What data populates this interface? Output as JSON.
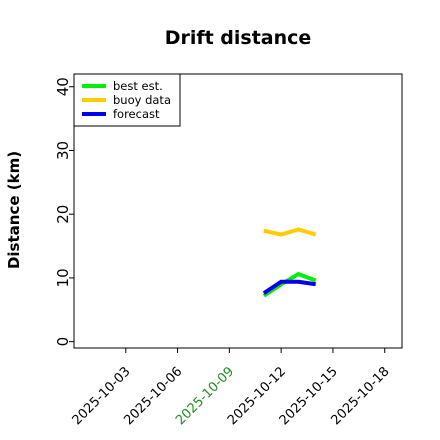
{
  "chart_data": {
    "type": "line",
    "title": "Drift distance",
    "xlabel": "",
    "ylabel": "Distance (km)",
    "ylim": [
      -1,
      42
    ],
    "xlim": [
      "2025-09-30",
      "2025-10-19"
    ],
    "yticks": [
      "0",
      "10",
      "20",
      "30",
      "40"
    ],
    "xticks": [
      {
        "label": "2025-10-03",
        "color": "#000000"
      },
      {
        "label": "2025-10-06",
        "color": "#000000"
      },
      {
        "label": "2025-10-09",
        "color": "#228b22"
      },
      {
        "label": "2025-10-12",
        "color": "#000000"
      },
      {
        "label": "2025-10-15",
        "color": "#000000"
      },
      {
        "label": "2025-10-18",
        "color": "#000000"
      }
    ],
    "legend_position": "top-left",
    "grid": false,
    "series": [
      {
        "name": "best est.",
        "color": "#00ee00",
        "x": [
          "2025-10-11",
          "2025-10-12",
          "2025-10-13",
          "2025-10-14"
        ],
        "y": [
          7.2,
          9.0,
          10.6,
          9.6
        ]
      },
      {
        "name": "buoy data",
        "color": "#ffcc00",
        "x": [
          "2025-10-11",
          "2025-10-12",
          "2025-10-13",
          "2025-10-14"
        ],
        "y": [
          17.4,
          16.8,
          17.6,
          16.8
        ]
      },
      {
        "name": "forecast",
        "color": "#0000ee",
        "x": [
          "2025-10-11",
          "2025-10-12",
          "2025-10-13",
          "2025-10-14"
        ],
        "y": [
          7.6,
          9.4,
          9.4,
          9.0
        ]
      }
    ]
  }
}
